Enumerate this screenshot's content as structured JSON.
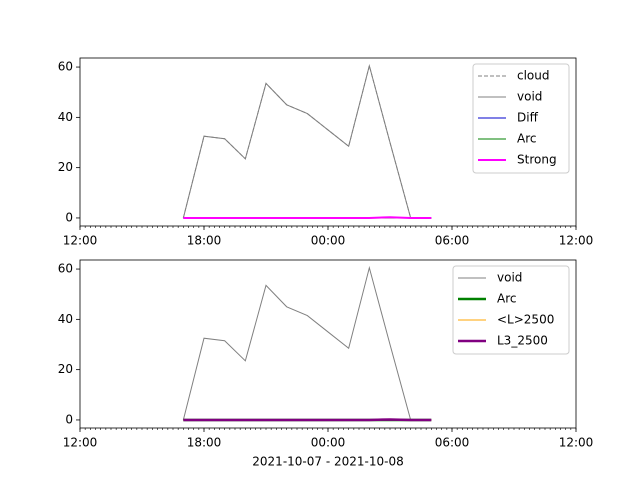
{
  "chart_data": [
    {
      "type": "line",
      "x": [
        "2021-10-07 17:00",
        "2021-10-07 18:00",
        "2021-10-07 19:00",
        "2021-10-07 20:00",
        "2021-10-07 21:00",
        "2021-10-07 22:00",
        "2021-10-07 23:00",
        "2021-10-08 00:00",
        "2021-10-08 01:00",
        "2021-10-08 02:00",
        "2021-10-08 03:00",
        "2021-10-08 04:00",
        "2021-10-08 05:00"
      ],
      "series": [
        {
          "name": "cloud",
          "color": "#808080",
          "linestyle": "dashed",
          "linewidth": 1,
          "values": [
            0,
            32.5,
            31.5,
            23.5,
            53.5,
            45,
            41.5,
            35,
            28.5,
            60.5,
            30,
            0,
            null
          ]
        },
        {
          "name": "void",
          "color": "#808080",
          "linestyle": "solid",
          "linewidth": 1,
          "values": [
            0,
            32.5,
            31.5,
            23.5,
            53.5,
            45,
            41.5,
            35,
            28.5,
            60.5,
            30,
            0,
            null
          ]
        },
        {
          "name": "Diff",
          "color": "#0000cc",
          "linestyle": "solid",
          "linewidth": 1,
          "values": [
            0,
            0,
            0,
            0,
            0,
            0,
            0,
            0,
            0,
            0,
            0,
            0,
            0
          ]
        },
        {
          "name": "Arc",
          "color": "#008000",
          "linestyle": "solid",
          "linewidth": 1,
          "values": [
            0,
            0,
            0,
            0,
            0,
            0,
            0,
            0,
            0,
            0,
            0,
            0,
            0
          ]
        },
        {
          "name": "Strong",
          "color": "#ff00ff",
          "linestyle": "solid",
          "linewidth": 2,
          "values": [
            0,
            0,
            0,
            0,
            0,
            0,
            0,
            0,
            0,
            0,
            0.3,
            0,
            0
          ]
        }
      ],
      "xlim": [
        "2021-10-07 12:00",
        "2021-10-08 12:00"
      ],
      "xticks": [
        {
          "value": "2021-10-07 12:00",
          "label": "12:00"
        },
        {
          "value": "2021-10-07 18:00",
          "label": "18:00"
        },
        {
          "value": "2021-10-08 00:00",
          "label": "00:00"
        },
        {
          "value": "2021-10-08 06:00",
          "label": "06:00"
        },
        {
          "value": "2021-10-08 12:00",
          "label": "12:00"
        }
      ],
      "ylim": [
        -3.2,
        63.6
      ],
      "yticks": [
        0,
        20,
        40,
        60
      ],
      "legend": "upper right"
    },
    {
      "type": "line",
      "x": [
        "2021-10-07 17:00",
        "2021-10-07 18:00",
        "2021-10-07 19:00",
        "2021-10-07 20:00",
        "2021-10-07 21:00",
        "2021-10-07 22:00",
        "2021-10-07 23:00",
        "2021-10-08 00:00",
        "2021-10-08 01:00",
        "2021-10-08 02:00",
        "2021-10-08 03:00",
        "2021-10-08 04:00",
        "2021-10-08 05:00"
      ],
      "series": [
        {
          "name": "void",
          "color": "#808080",
          "linestyle": "solid",
          "linewidth": 1,
          "values": [
            0,
            32.5,
            31.5,
            23.5,
            53.5,
            45,
            41.5,
            35,
            28.5,
            60.5,
            30,
            0,
            null
          ]
        },
        {
          "name": "Arc",
          "color": "#008000",
          "linestyle": "solid",
          "linewidth": 2.5,
          "values": [
            0,
            0,
            0,
            0,
            0,
            0,
            0,
            0,
            0,
            0,
            0,
            0,
            0
          ]
        },
        {
          "name": "<L>2500",
          "color": "#ffa500",
          "linestyle": "solid",
          "linewidth": 1,
          "values": [
            0,
            0,
            0,
            0,
            0,
            0,
            0,
            0,
            0,
            0,
            0,
            0,
            0
          ]
        },
        {
          "name": "L3_2500",
          "color": "#800080",
          "linestyle": "solid",
          "linewidth": 2.5,
          "values": [
            0,
            0,
            0,
            0,
            0,
            0,
            0,
            0,
            0,
            0,
            0.2,
            0,
            0
          ]
        }
      ],
      "xlim": [
        "2021-10-07 12:00",
        "2021-10-08 12:00"
      ],
      "xticks": [
        {
          "value": "2021-10-07 12:00",
          "label": "12:00"
        },
        {
          "value": "2021-10-07 18:00",
          "label": "18:00"
        },
        {
          "value": "2021-10-08 00:00",
          "label": "00:00"
        },
        {
          "value": "2021-10-08 06:00",
          "label": "06:00"
        },
        {
          "value": "2021-10-08 12:00",
          "label": "12:00"
        }
      ],
      "ylim": [
        -3.2,
        63.6
      ],
      "yticks": [
        0,
        20,
        40,
        60
      ],
      "legend": "upper right",
      "xlabel": "2021-10-07 - 2021-10-08"
    }
  ]
}
